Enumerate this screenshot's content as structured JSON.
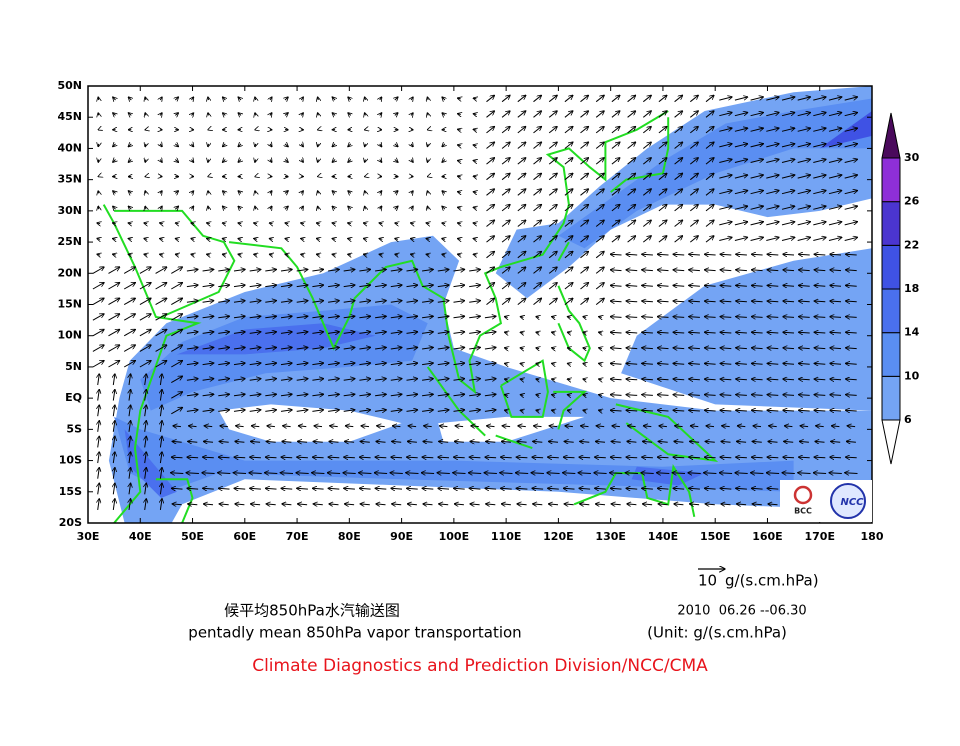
{
  "map": {
    "lat_labels": [
      "50N",
      "45N",
      "40N",
      "35N",
      "30N",
      "25N",
      "20N",
      "15N",
      "10N",
      "5N",
      "EQ",
      "5S",
      "10S",
      "15S",
      "20S"
    ],
    "lon_labels": [
      "30E",
      "40E",
      "50E",
      "60E",
      "70E",
      "80E",
      "90E",
      "100E",
      "110E",
      "120E",
      "130E",
      "140E",
      "150E",
      "160E",
      "170E",
      "180"
    ],
    "colorbar": {
      "levels": [
        6,
        10,
        14,
        18,
        22,
        26,
        30
      ],
      "colors": [
        "#ffffff",
        "#74a4f4",
        "#5a8ef2",
        "#4a70ee",
        "#3f52e4",
        "#4b35d0",
        "#8e2fd8",
        "#4a0a5c"
      ]
    },
    "reference_vector": {
      "value": 10,
      "unit": "g/(s.cm.hPa)"
    },
    "logos": [
      "BCC",
      "NCC"
    ]
  },
  "caption": {
    "title_cn": "候平均850hPa水汽输送图",
    "title_en": "pentadly mean 850hPa vapor transportation",
    "date": "2010  06.26 --06.30",
    "unit": "(Unit: g/(s.cm.hPa)",
    "credit": "Climate Diagnostics and Prediction Division/NCC/CMA"
  }
}
